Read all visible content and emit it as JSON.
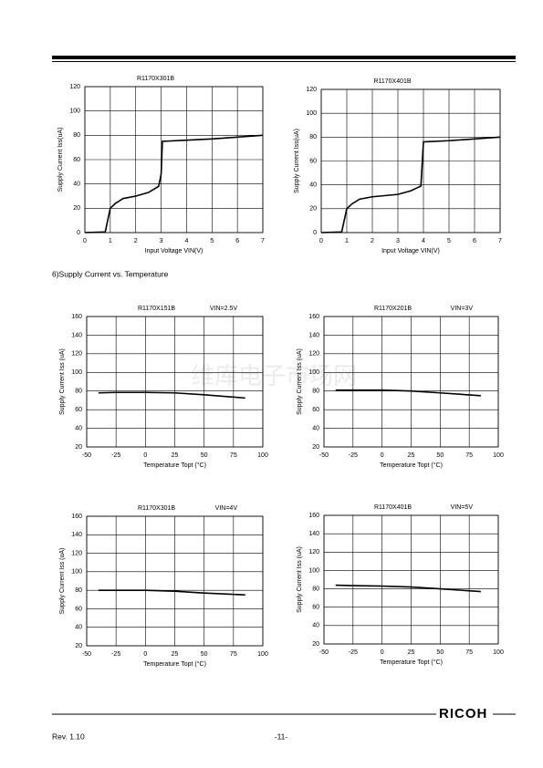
{
  "section_heading": "6)Supply Current vs. Temperature",
  "watermark": "维库电子市场网",
  "footer": {
    "revision": "Rev. 1.10",
    "page": "-11-",
    "logo": "RICOH"
  },
  "chart_data": [
    {
      "type": "line",
      "title": "R1170X301B",
      "x_label": "Input Voltage VIN(V)",
      "y_label": "Supply Current Iss(uA)",
      "x": [
        0,
        0.8,
        1,
        1.2,
        1.5,
        2,
        2.5,
        2.9,
        3.0,
        3.05,
        4,
        5,
        6,
        7
      ],
      "values": [
        0,
        0.5,
        20,
        24,
        28,
        30,
        33,
        38,
        48,
        75,
        76,
        77,
        78.5,
        80
      ],
      "color": "#000000",
      "xlim": [
        0,
        7
      ],
      "xticks": [
        0,
        1,
        2,
        3,
        4,
        5,
        6,
        7
      ],
      "ylim": [
        0,
        120
      ],
      "yticks": [
        0,
        20,
        40,
        60,
        80,
        100,
        120
      ],
      "grid": true
    },
    {
      "type": "line",
      "title": "R1170X401B",
      "x_label": "Input Voltage VIN(V)",
      "y_label": "Supply Current Iss(uA)",
      "x": [
        0,
        0.8,
        1,
        1.2,
        1.5,
        2,
        3,
        3.5,
        3.9,
        4.0,
        5,
        6,
        7
      ],
      "values": [
        0,
        0.5,
        20,
        24,
        28,
        30,
        32,
        35,
        39,
        76,
        77,
        78.5,
        80
      ],
      "color": "#000000",
      "xlim": [
        0,
        7
      ],
      "xticks": [
        0,
        1,
        2,
        3,
        4,
        5,
        6,
        7
      ],
      "ylim": [
        0,
        120
      ],
      "yticks": [
        0,
        20,
        40,
        60,
        80,
        100,
        120
      ],
      "grid": true
    },
    {
      "type": "line",
      "title": "R1170X151B",
      "annotation": "VIN=2.5V",
      "x_label": "Temperature Topt (°C)",
      "y_label": "Supply Current Iss (uA)",
      "x": [
        -40,
        -25,
        0,
        25,
        50,
        85
      ],
      "values": [
        78,
        78.5,
        78.5,
        78,
        76,
        72.5
      ],
      "color": "#000000",
      "xlim": [
        -50,
        100
      ],
      "xticks": [
        -50,
        -25,
        0,
        25,
        50,
        75,
        100
      ],
      "ylim": [
        20,
        160
      ],
      "yticks": [
        20,
        40,
        60,
        80,
        100,
        120,
        140,
        160
      ],
      "grid": true
    },
    {
      "type": "line",
      "title": "R1170X201B",
      "annotation": "VIN=3V",
      "x_label": "Temperature Topt (°C)",
      "y_label": "Supply Current Iss (uA)",
      "x": [
        -40,
        -25,
        0,
        25,
        50,
        85
      ],
      "values": [
        81,
        81,
        81,
        80,
        78,
        75
      ],
      "color": "#000000",
      "xlim": [
        -50,
        100
      ],
      "xticks": [
        -50,
        -25,
        0,
        25,
        50,
        75,
        100
      ],
      "ylim": [
        20,
        160
      ],
      "yticks": [
        20,
        40,
        60,
        80,
        100,
        120,
        140,
        160
      ],
      "grid": true
    },
    {
      "type": "line",
      "title": "R1170X301B",
      "annotation": "VIN=4V",
      "x_label": "Temperature Topt (°C)",
      "y_label": "Supply Current Iss (uA)",
      "x": [
        -40,
        -25,
        0,
        25,
        50,
        85
      ],
      "values": [
        80,
        80,
        80,
        79,
        77,
        75
      ],
      "color": "#000000",
      "xlim": [
        -50,
        100
      ],
      "xticks": [
        -50,
        -25,
        0,
        25,
        50,
        75,
        100
      ],
      "ylim": [
        20,
        160
      ],
      "yticks": [
        20,
        40,
        60,
        80,
        100,
        120,
        140,
        160
      ],
      "grid": true
    },
    {
      "type": "line",
      "title": "R1170X401B",
      "annotation": "VIN=5V",
      "x_label": "Temperature Topt (°C)",
      "y_label": "Supply Current Iss (uA)",
      "x": [
        -40,
        -25,
        0,
        25,
        50,
        85
      ],
      "values": [
        84,
        83.5,
        83,
        82,
        80,
        77
      ],
      "color": "#000000",
      "xlim": [
        -50,
        100
      ],
      "xticks": [
        -50,
        -25,
        0,
        25,
        50,
        75,
        100
      ],
      "ylim": [
        20,
        160
      ],
      "yticks": [
        20,
        40,
        60,
        80,
        100,
        120,
        140,
        160
      ],
      "grid": true
    }
  ]
}
